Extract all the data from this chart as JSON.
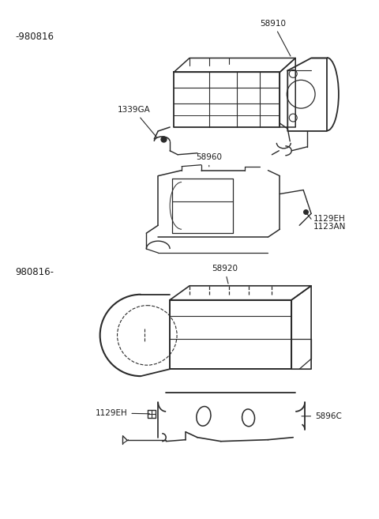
{
  "bg_color": "#ffffff",
  "line_color": "#2a2a2a",
  "text_color": "#1a1a1a",
  "fig_width": 4.8,
  "fig_height": 6.57,
  "dpi": 100,
  "labels": {
    "top_section": "-980816",
    "bottom_section": "980816-",
    "part_58910": "58910",
    "part_1339GA": "1339GA",
    "part_58960": "58960",
    "part_1129EH_top": "1129EH",
    "part_1123AN": "1123AN",
    "part_58920": "58920",
    "part_5896C": "5896C",
    "part_1129EH_bot": "1129EH"
  },
  "font_size": 7.5
}
